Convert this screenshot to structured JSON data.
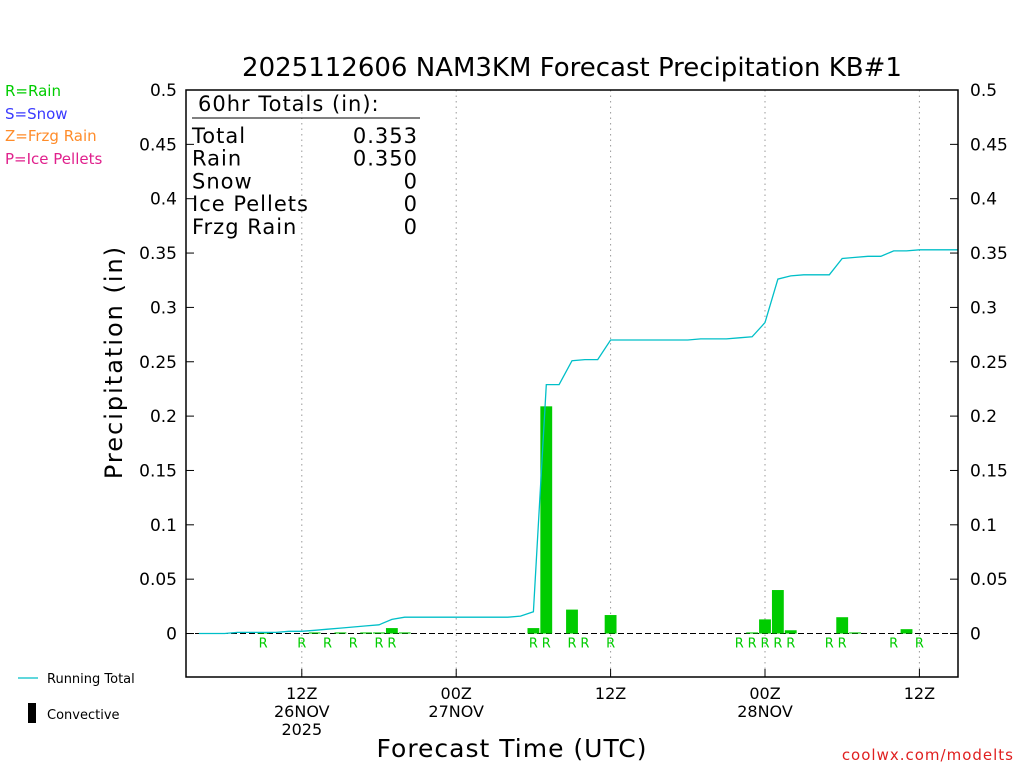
{
  "colors": {
    "rain": "#00cc00",
    "snow": "#3a3aff",
    "frzg": "#ff8c2a",
    "ice": "#e0208c",
    "running_total": "#00bfc8",
    "convective": "#000000",
    "grid": "#999999",
    "credit": "#e02020"
  },
  "key": {
    "rain": "R=Rain",
    "snow": "S=Snow",
    "frzg": "Z=Frzg Rain",
    "ice": "P=Ice Pellets"
  },
  "legend": {
    "running_total": "Running Total",
    "convective": "Convective"
  },
  "credit": "coolwx.com/modelts",
  "totals": {
    "header": "60hr Totals (in):",
    "rows": [
      {
        "label": "Total",
        "value": "0.353"
      },
      {
        "label": "Rain",
        "value": "0.350"
      },
      {
        "label": "Snow",
        "value": "0"
      },
      {
        "label": "Ice Pellets",
        "value": "0"
      },
      {
        "label": "Frzg Rain",
        "value": "0"
      }
    ]
  },
  "chart_data": {
    "type": "bar",
    "title": "2025112606 NAM3KM Forecast Precipitation KB#1",
    "xlabel": "Forecast Time (UTC)",
    "ylabel": "Precipitation (in)",
    "ylim": [
      -0.04,
      0.5
    ],
    "xlim": [
      -3,
      57
    ],
    "x_units": "forecast hours from 2025-11-26 06Z",
    "yticks": [
      0,
      0.05,
      0.1,
      0.15,
      0.2,
      0.25,
      0.3,
      0.35,
      0.4,
      0.45,
      0.5
    ],
    "ytick_labels": [
      "0",
      "0.05",
      "0.1",
      "0.15",
      "0.2",
      "0.25",
      "0.3",
      "0.35",
      "0.4",
      "0.45",
      "0.5"
    ],
    "xticks": [
      {
        "hour": 6,
        "lines": [
          "12Z",
          "26NOV",
          "2025"
        ]
      },
      {
        "hour": 18,
        "lines": [
          "00Z",
          "27NOV"
        ]
      },
      {
        "hour": 30,
        "lines": [
          "12Z"
        ]
      },
      {
        "hour": 42,
        "lines": [
          "00Z",
          "28NOV"
        ]
      },
      {
        "hour": 54,
        "lines": [
          "12Z"
        ]
      }
    ],
    "grid": "dotted vertical at 00Z/12Z",
    "bars": [
      {
        "x": 3,
        "value": 0.001
      },
      {
        "x": 7,
        "value": 0.001
      },
      {
        "x": 9,
        "value": 0.001
      },
      {
        "x": 11,
        "value": 0.001
      },
      {
        "x": 12,
        "value": 0.001
      },
      {
        "x": 13,
        "value": 0.005
      },
      {
        "x": 14,
        "value": 0.001
      },
      {
        "x": 24,
        "value": 0.005
      },
      {
        "x": 25,
        "value": 0.209
      },
      {
        "x": 27,
        "value": 0.022
      },
      {
        "x": 30,
        "value": 0.017
      },
      {
        "x": 41,
        "value": 0.001
      },
      {
        "x": 42,
        "value": 0.013
      },
      {
        "x": 43,
        "value": 0.04
      },
      {
        "x": 44,
        "value": 0.003
      },
      {
        "x": 48,
        "value": 0.015
      },
      {
        "x": 49,
        "value": 0.001
      },
      {
        "x": 53,
        "value": 0.004
      }
    ],
    "ptype_labels": [
      {
        "x": 3,
        "text": "R"
      },
      {
        "x": 6,
        "text": "R"
      },
      {
        "x": 8,
        "text": "R"
      },
      {
        "x": 10,
        "text": "R"
      },
      {
        "x": 12,
        "text": "R"
      },
      {
        "x": 13,
        "text": "R"
      },
      {
        "x": 24,
        "text": "R"
      },
      {
        "x": 25,
        "text": "R"
      },
      {
        "x": 27,
        "text": "R"
      },
      {
        "x": 28,
        "text": "R"
      },
      {
        "x": 30,
        "text": "R"
      },
      {
        "x": 40,
        "text": "R"
      },
      {
        "x": 41,
        "text": "R"
      },
      {
        "x": 42,
        "text": "R"
      },
      {
        "x": 43,
        "text": "R"
      },
      {
        "x": 44,
        "text": "R"
      },
      {
        "x": 47,
        "text": "R"
      },
      {
        "x": 48,
        "text": "R"
      },
      {
        "x": 52,
        "text": "R"
      },
      {
        "x": 54,
        "text": "R"
      }
    ],
    "running_total": {
      "name": "Running Total",
      "x": [
        -2,
        0,
        1,
        2,
        3,
        4,
        5,
        6,
        7,
        8,
        9,
        10,
        11,
        12,
        13,
        14,
        15,
        16,
        17,
        18,
        19,
        20,
        21,
        22,
        23,
        24,
        25,
        26,
        27,
        28,
        29,
        30,
        31,
        32,
        33,
        34,
        35,
        36,
        37,
        38,
        39,
        40,
        41,
        42,
        43,
        44,
        45,
        46,
        47,
        48,
        49,
        50,
        51,
        52,
        53,
        54,
        55,
        56,
        57
      ],
      "y": [
        0,
        0,
        0.001,
        0.001,
        0.001,
        0.001,
        0.002,
        0.002,
        0.003,
        0.004,
        0.005,
        0.006,
        0.007,
        0.008,
        0.013,
        0.015,
        0.015,
        0.015,
        0.015,
        0.015,
        0.015,
        0.015,
        0.015,
        0.015,
        0.016,
        0.02,
        0.229,
        0.229,
        0.251,
        0.252,
        0.252,
        0.27,
        0.27,
        0.27,
        0.27,
        0.27,
        0.27,
        0.27,
        0.271,
        0.271,
        0.271,
        0.272,
        0.273,
        0.286,
        0.326,
        0.329,
        0.33,
        0.33,
        0.33,
        0.345,
        0.346,
        0.347,
        0.347,
        0.352,
        0.352,
        0.353,
        0.353,
        0.353,
        0.353
      ]
    }
  }
}
